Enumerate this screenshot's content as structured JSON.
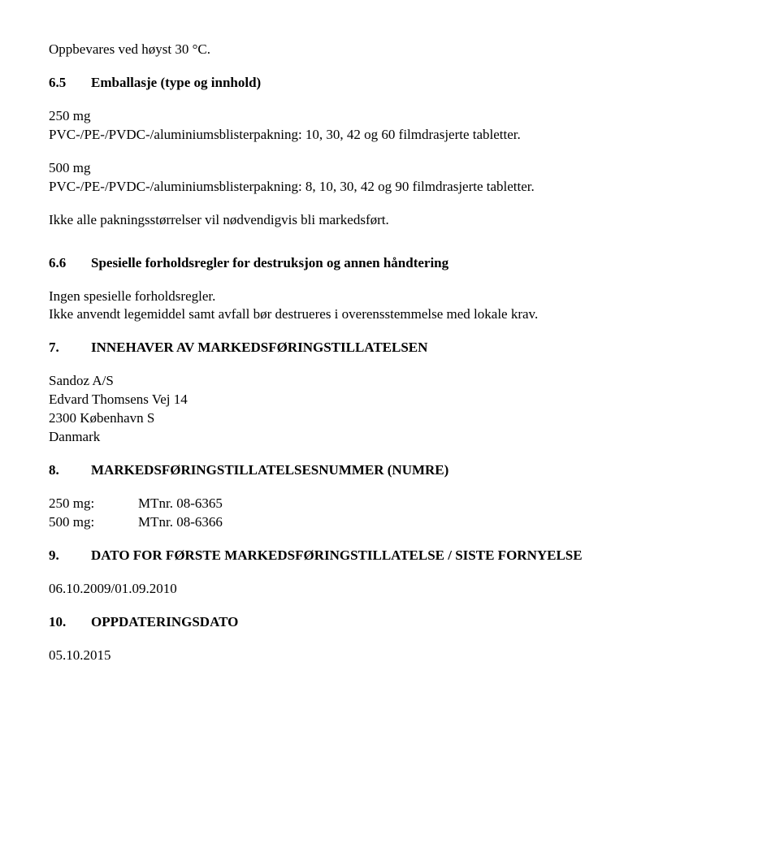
{
  "storage": "Oppbevares ved høyst 30 °C.",
  "sec6_5": {
    "num": "6.5",
    "title": "Emballasje (type og innhold)",
    "dose1_label": "250 mg",
    "dose1_text": "PVC-/PE-/PVDC-/aluminiumsblisterpakning: 10, 30, 42 og 60 filmdrasjerte tabletter.",
    "dose2_label": "500 mg",
    "dose2_text": "PVC-/PE-/PVDC-/aluminiumsblisterpakning: 8, 10, 30, 42 og 90 filmdrasjerte tabletter.",
    "note": "Ikke alle pakningsstørrelser vil nødvendigvis bli markedsført."
  },
  "sec6_6": {
    "num": "6.6",
    "title": "Spesielle forholdsregler for destruksjon og annen håndtering",
    "line1": "Ingen spesielle forholdsregler.",
    "line2": "Ikke anvendt legemiddel samt avfall bør destrueres i overensstemmelse med lokale krav."
  },
  "sec7": {
    "num": "7.",
    "title": "INNEHAVER AV MARKEDSFØRINGSTILLATELSEN",
    "holder": [
      "Sandoz A/S",
      "Edvard Thomsens Vej 14",
      "2300 København S",
      "Danmark"
    ]
  },
  "sec8": {
    "num": "8.",
    "title": "MARKEDSFØRINGSTILLATELSESNUMMER (NUMRE)",
    "rows": [
      {
        "label": "250 mg:",
        "val": "MTnr. 08-6365"
      },
      {
        "label": "500 mg:",
        "val": "MTnr. 08-6366"
      }
    ]
  },
  "sec9": {
    "num": "9.",
    "title": "DATO FOR FØRSTE MARKEDSFØRINGSTILLATELSE / SISTE FORNYELSE",
    "val": "06.10.2009/01.09.2010"
  },
  "sec10": {
    "num": "10.",
    "title": "OPPDATERINGSDATO",
    "val": "05.10.2015"
  }
}
